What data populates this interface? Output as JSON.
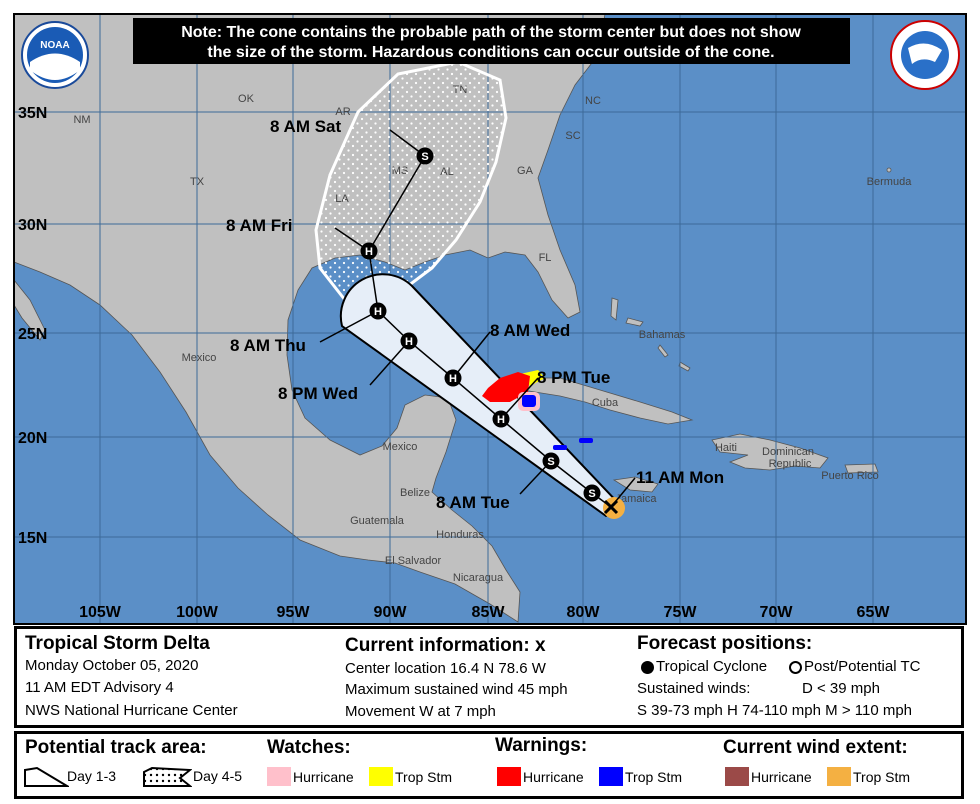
{
  "note": {
    "line1": "Note: The cone contains the probable path of the storm center but does not show",
    "line2": "the size of the storm. Hazardous conditions can occur outside of the cone."
  },
  "logos": {
    "left": "NOAA",
    "right": "NATIONAL WEATHER SERVICE"
  },
  "lat_labels": [
    "35N",
    "30N",
    "25N",
    "20N",
    "15N"
  ],
  "lon_labels": [
    "105W",
    "100W",
    "95W",
    "90W",
    "85W",
    "80W",
    "75W",
    "70W",
    "65W"
  ],
  "place_labels": [
    "OK",
    "AR",
    "TN",
    "NC",
    "SC",
    "GA",
    "AL",
    "MS",
    "LA",
    "TX",
    "NM",
    "FL",
    "Bermuda",
    "Bahamas",
    "Cuba",
    "Mexico",
    "Mexico",
    "Belize",
    "Guatemala",
    "Honduras",
    "El Salvador",
    "Nicaragua",
    "Jamaica",
    "Haiti",
    "Dominican",
    "Republic",
    "Puerto Rico"
  ],
  "forecast_points": [
    {
      "label": "11 AM Mon",
      "symbol": "X"
    },
    {
      "label": "",
      "symbol": "S"
    },
    {
      "label": "8 AM Tue",
      "symbol": "S"
    },
    {
      "label": "8 PM Tue",
      "symbol": "H"
    },
    {
      "label": "8 AM Wed",
      "symbol": "H"
    },
    {
      "label": "8 PM Wed",
      "symbol": "H"
    },
    {
      "label": "8 AM Thu",
      "symbol": "H"
    },
    {
      "label": "8 AM Fri",
      "symbol": "H"
    },
    {
      "label": "8 AM Sat",
      "symbol": "S"
    }
  ],
  "info": {
    "storm_name": "Tropical Storm Delta",
    "date": "Monday October 05, 2020",
    "advisory": "11 AM EDT Advisory 4",
    "center": "NWS National Hurricane Center",
    "current_title": "Current information: x",
    "location": "Center location 16.4 N 78.6 W",
    "max_wind": "Maximum sustained wind 45 mph",
    "movement": "Movement W at 7 mph",
    "forecast_title": "Forecast positions:",
    "tropical_cyclone": "Tropical Cyclone",
    "post_potential": "Post/Potential TC",
    "sustained_winds": "Sustained winds:",
    "d": "D < 39 mph",
    "shm": "S 39-73 mph  H 74-110 mph  M > 110 mph"
  },
  "legend": {
    "track_title": "Potential track area:",
    "day13": "Day 1-3",
    "day45": "Day 4-5",
    "watches_title": "Watches:",
    "warnings_title": "Warnings:",
    "wind_title": "Current wind extent:",
    "hurricane": "Hurricane",
    "trop_stm": "Trop Stm"
  },
  "colors": {
    "ocean": "#5b8fc7",
    "land": "#c0c0c0",
    "hurricane_watch": "#ffc0cb",
    "trop_storm_watch": "#ffff00",
    "hurricane_warning": "#ff0000",
    "trop_storm_warning": "#0000ff",
    "hurricane_wind": "#9b4a48",
    "trop_storm_wind": "#f4b042"
  }
}
